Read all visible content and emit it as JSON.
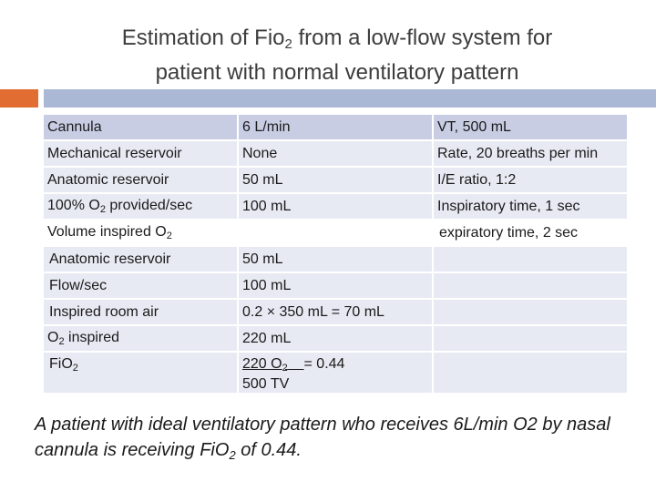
{
  "title": {
    "line1_pre": "Estimation of Fio",
    "line1_sub": "2",
    "line1_post": " from a low-flow system for",
    "line2": "patient with normal ventilatory pattern"
  },
  "table": {
    "header": [
      "Cannula",
      "6 L/min",
      "VT, 500 mL"
    ],
    "rows": [
      [
        "Mechanical reservoir",
        "None",
        "Rate, 20 breaths per min"
      ],
      [
        "Anatomic reservoir",
        "50 mL",
        "I/E ratio, 1:2"
      ],
      [
        "100% O",
        "2",
        " provided/sec",
        "100 mL",
        "Inspiratory time, 1 sec"
      ],
      [
        "Volume inspired O",
        "2",
        "",
        "expiratory time, 2 sec"
      ],
      [
        "Anatomic reservoir",
        "50 mL",
        ""
      ],
      [
        "Flow/sec",
        "100 mL",
        ""
      ],
      [
        "Inspired room air",
        "0.2 × 350 mL = 70 mL",
        ""
      ],
      [
        "O",
        "2",
        " inspired",
        "220 mL",
        ""
      ],
      [
        "FiO",
        "2",
        "220 O",
        "2",
        "= 0.44",
        "500 TV",
        ""
      ]
    ]
  },
  "summary": {
    "pre": "A patient with ideal ventilatory pattern who receives 6L/min O2 by nasal cannula is receiving  FiO",
    "sub": "2",
    "post": " of 0.44."
  },
  "colors": {
    "accent": "#e26d33",
    "rule": "#aab8d6",
    "header_cell": "#c8cde4",
    "body_cell": "#e8eaf3"
  }
}
